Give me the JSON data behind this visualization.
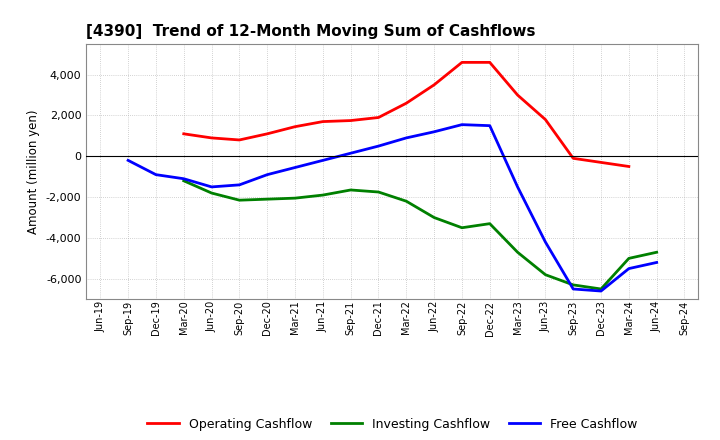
{
  "title": "[4390]  Trend of 12-Month Moving Sum of Cashflows",
  "ylabel": "Amount (million yen)",
  "background_color": "#ffffff",
  "grid_color": "#aaaaaa",
  "x_labels": [
    "Jun-19",
    "Sep-19",
    "Dec-19",
    "Mar-20",
    "Jun-20",
    "Sep-20",
    "Dec-20",
    "Mar-21",
    "Jun-21",
    "Sep-21",
    "Dec-21",
    "Mar-22",
    "Jun-22",
    "Sep-22",
    "Dec-22",
    "Mar-23",
    "Jun-23",
    "Sep-23",
    "Dec-23",
    "Mar-24",
    "Jun-24",
    "Sep-24"
  ],
  "operating": [
    null,
    null,
    null,
    1100,
    900,
    800,
    1100,
    1450,
    1700,
    1750,
    1900,
    2600,
    3500,
    4600,
    4600,
    3000,
    1800,
    -100,
    -300,
    -500,
    null,
    null
  ],
  "investing": [
    null,
    null,
    null,
    -1200,
    -1800,
    -2150,
    -2100,
    -2050,
    -1900,
    -1650,
    -1750,
    -2200,
    -3000,
    -3500,
    -3300,
    -4700,
    -5800,
    -6300,
    -6500,
    -5000,
    -4700,
    null
  ],
  "free": [
    null,
    -200,
    -900,
    -1100,
    -1500,
    -1400,
    -900,
    -550,
    -200,
    150,
    500,
    900,
    1200,
    1550,
    1500,
    -1500,
    -4200,
    -6500,
    -6600,
    -5500,
    -5200,
    null
  ],
  "ylim": [
    -7000,
    5500
  ],
  "yticks": [
    -6000,
    -4000,
    -2000,
    0,
    2000,
    4000
  ],
  "operating_color": "#ff0000",
  "investing_color": "#008000",
  "free_color": "#0000ff",
  "line_width": 2.0
}
